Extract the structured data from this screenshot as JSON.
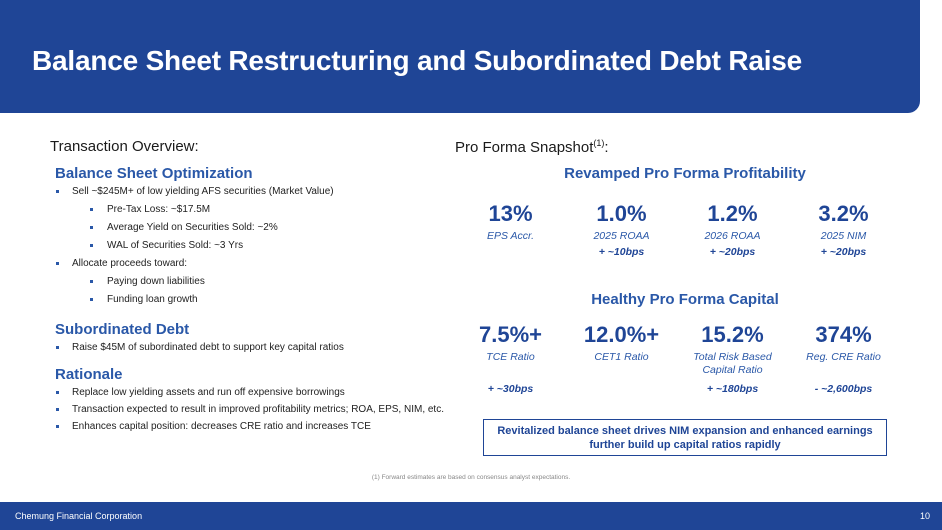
{
  "title": "Balance Sheet Restructuring and Subordinated Debt Raise",
  "left": {
    "overview_title": "Transaction Overview:",
    "sections": [
      {
        "title": "Balance Sheet Optimization",
        "items": [
          {
            "level": 1,
            "text": "Sell ~$245M+ of low yielding AFS securities (Market Value)"
          },
          {
            "level": 2,
            "text": "Pre-Tax Loss: ~$17.5M"
          },
          {
            "level": 2,
            "text": "Average Yield on Securities Sold: ~2%"
          },
          {
            "level": 2,
            "text": "WAL of Securities Sold: ~3 Yrs"
          },
          {
            "level": 1,
            "text": "Allocate proceeds toward:"
          },
          {
            "level": 2,
            "text": "Paying down liabilities"
          },
          {
            "level": 2,
            "text": "Funding loan growth"
          }
        ]
      },
      {
        "title": "Subordinated Debt",
        "items": [
          {
            "level": 1,
            "text": "Raise $45M of subordinated debt to support key capital ratios"
          }
        ]
      },
      {
        "title": "Rationale",
        "items": [
          {
            "level": 1,
            "text": "Replace low yielding assets and run off expensive borrowings"
          },
          {
            "level": 1,
            "text": "Transaction expected to result in improved profitability metrics; ROA, EPS, NIM, etc."
          },
          {
            "level": 1,
            "text": "Enhances capital position: decreases CRE ratio and increases TCE"
          }
        ]
      }
    ]
  },
  "right": {
    "snapshot_title": "Pro Forma Snapshot",
    "snapshot_sup": "(1)",
    "snapshot_colon": ":",
    "profitability_title": "Revamped Pro Forma Profitability",
    "profitability": [
      {
        "value": "13%",
        "label": "EPS Accr.",
        "change": ""
      },
      {
        "value": "1.0%",
        "label": "2025 ROAA",
        "change": "+ ~10bps"
      },
      {
        "value": "1.2%",
        "label": "2026 ROAA",
        "change": "+ ~20bps"
      },
      {
        "value": "3.2%",
        "label": "2025 NIM",
        "change": "+ ~20bps"
      }
    ],
    "capital_title": "Healthy Pro Forma Capital",
    "capital": [
      {
        "value": "7.5%+",
        "label": "TCE Ratio",
        "change": "+ ~30bps"
      },
      {
        "value": "12.0%+",
        "label": "CET1 Ratio",
        "change": ""
      },
      {
        "value": "15.2%",
        "label": "Total Risk Based Capital Ratio",
        "change": "+ ~180bps"
      },
      {
        "value": "374%",
        "label": "Reg. CRE Ratio",
        "change": "- ~2,600bps"
      }
    ]
  },
  "callout": {
    "line1": "Revitalized balance sheet drives NIM expansion and enhanced earnings",
    "line2": "further build up capital ratios rapidly"
  },
  "footnote": "(1) Forward estimates are based on consensus analyst expectations.",
  "footer": {
    "company": "Chemung Financial Corporation",
    "page": "10"
  },
  "colors": {
    "brand_blue": "#1f4596",
    "accent_blue": "#2a58a8"
  }
}
